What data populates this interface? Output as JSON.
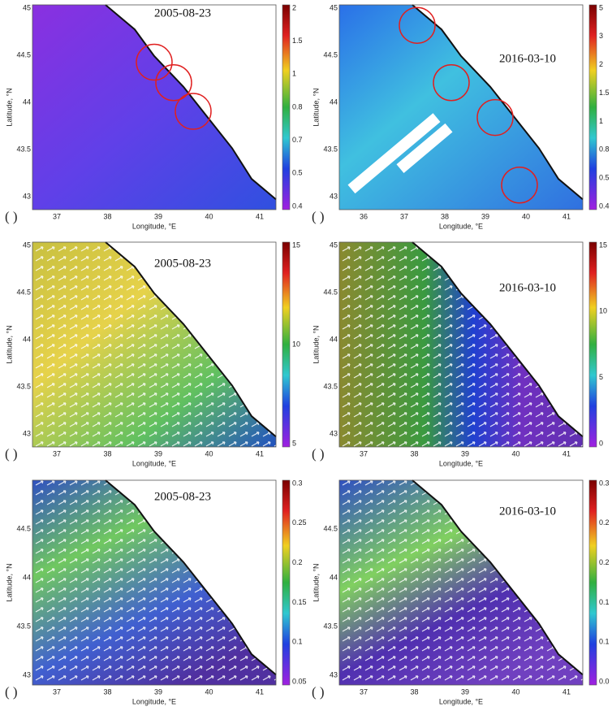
{
  "panels": [
    {
      "label": "( )",
      "date": "2005-08-23",
      "x_label": "Longitude, °E",
      "y_label": "Latitude, °N",
      "xticks": [
        "37",
        "38",
        "39",
        "40",
        "41"
      ],
      "yticks": [
        "45",
        "44.5",
        "44",
        "43.5",
        "43"
      ],
      "colorbar_ticks": [
        "2",
        "1.5",
        "1",
        "0.8",
        "0.7",
        "0.5",
        "0.4"
      ]
    },
    {
      "label": "( )",
      "date": "2016-03-10",
      "x_label": "Longitude, °E",
      "y_label": "Latitude, °N",
      "xticks": [
        "36",
        "37",
        "38",
        "39",
        "40",
        "41"
      ],
      "yticks": [
        "45",
        "44.5",
        "44",
        "43.5",
        "43"
      ],
      "colorbar_ticks": [
        "5",
        "3",
        "2",
        "1.5",
        "1",
        "0.8",
        "0.5",
        "0.4"
      ]
    },
    {
      "label": "( )",
      "date": "2005-08-23",
      "x_label": "Longitude, °E",
      "y_label": "Latitude, °N",
      "xticks": [
        "37",
        "38",
        "39",
        "40",
        "41"
      ],
      "yticks": [
        "45",
        "44.5",
        "44",
        "43.5",
        "43"
      ],
      "colorbar_ticks": [
        "15",
        "10",
        "5"
      ]
    },
    {
      "label": "( )",
      "date": "2016-03-10",
      "x_label": "Longitude, °E",
      "y_label": "Latitude, °N",
      "xticks": [
        "37",
        "38",
        "39",
        "40",
        "41"
      ],
      "yticks": [
        "45",
        "44.5",
        "44",
        "43.5",
        "43"
      ],
      "colorbar_ticks": [
        "15",
        "10",
        "5",
        "0"
      ]
    },
    {
      "label": "( )",
      "date": "2005-08-23",
      "x_label": "Longitude, °E",
      "y_label": "Latitude, °N",
      "xticks": [
        "37",
        "38",
        "39",
        "40",
        "41"
      ],
      "yticks": [
        "44.5",
        "44",
        "43.5",
        "43"
      ],
      "colorbar_ticks": [
        "0.3",
        "0.25",
        "0.2",
        "0.15",
        "0.1",
        "0.05"
      ]
    },
    {
      "label": "( )",
      "date": "2016-03-10",
      "x_label": "Longitude, °E",
      "y_label": "Latitude, °N",
      "xticks": [
        "37",
        "38",
        "39",
        "40",
        "41"
      ],
      "yticks": [
        "44.5",
        "44",
        "43.5",
        "43"
      ],
      "colorbar_ticks": [
        "0.3",
        "0.2",
        "0.2",
        "0.1",
        "0.1",
        "0.0"
      ]
    }
  ]
}
